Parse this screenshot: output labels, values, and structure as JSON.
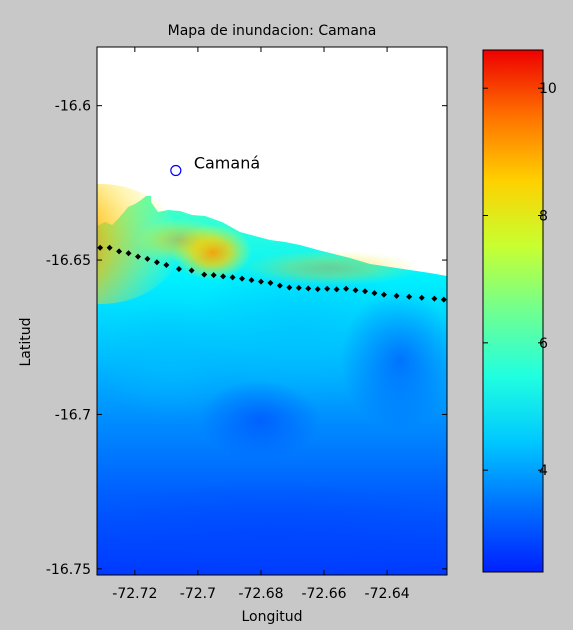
{
  "window": {
    "background": "#c8c8c8"
  },
  "chart_data": {
    "type": "heatmap",
    "title": "Mapa de inundacion: Camana",
    "xlabel": "Longitud",
    "ylabel": "Latitud",
    "xlim": [
      -72.732,
      -72.621
    ],
    "ylim": [
      -16.752,
      -16.581
    ],
    "x_ticks": [
      -72.72,
      -72.7,
      -72.68,
      -72.66,
      -72.64
    ],
    "x_tick_labels": [
      "-72.72",
      "-72.7",
      "-72.68",
      "-72.66",
      "-72.64"
    ],
    "y_ticks": [
      -16.6,
      -16.65,
      -16.7,
      -16.75
    ],
    "y_tick_labels": [
      "-16.6",
      "-16.65",
      "-16.7",
      "-16.75"
    ],
    "colormap": "jet",
    "colorbar": {
      "range": [
        2.4,
        10.6
      ],
      "ticks": [
        4,
        6,
        8,
        10
      ],
      "tick_labels": [
        "4",
        "6",
        "8",
        "10"
      ]
    },
    "annotations": [
      {
        "text": "Camaná",
        "marker": "circle",
        "color": "#0000ff",
        "lon": -72.707,
        "lat": -16.621
      }
    ],
    "coastline_points": [
      [
        -72.731,
        -16.646
      ],
      [
        -72.728,
        -16.646
      ],
      [
        -72.725,
        -16.6472
      ],
      [
        -72.722,
        -16.6478
      ],
      [
        -72.719,
        -16.6489
      ],
      [
        -72.716,
        -16.6496
      ],
      [
        -72.713,
        -16.6507
      ],
      [
        -72.71,
        -16.6516
      ],
      [
        -72.706,
        -16.6529
      ],
      [
        -72.702,
        -16.6534
      ],
      [
        -72.698,
        -16.6547
      ],
      [
        -72.695,
        -16.6549
      ],
      [
        -72.692,
        -16.6553
      ],
      [
        -72.689,
        -16.6556
      ],
      [
        -72.686,
        -16.656
      ],
      [
        -72.683,
        -16.6565
      ],
      [
        -72.68,
        -16.657
      ],
      [
        -72.677,
        -16.6574
      ],
      [
        -72.674,
        -16.6583
      ],
      [
        -72.671,
        -16.6589
      ],
      [
        -72.668,
        -16.659
      ],
      [
        -72.665,
        -16.6592
      ],
      [
        -72.662,
        -16.6594
      ],
      [
        -72.659,
        -16.6593
      ],
      [
        -72.656,
        -16.6595
      ],
      [
        -72.653,
        -16.6593
      ],
      [
        -72.65,
        -16.6598
      ],
      [
        -72.647,
        -16.6601
      ],
      [
        -72.644,
        -16.6607
      ],
      [
        -72.641,
        -16.6612
      ],
      [
        -72.637,
        -16.6616
      ],
      [
        -72.633,
        -16.6619
      ],
      [
        -72.629,
        -16.6622
      ],
      [
        -72.625,
        -16.6625
      ],
      [
        -72.622,
        -16.6628
      ]
    ]
  }
}
